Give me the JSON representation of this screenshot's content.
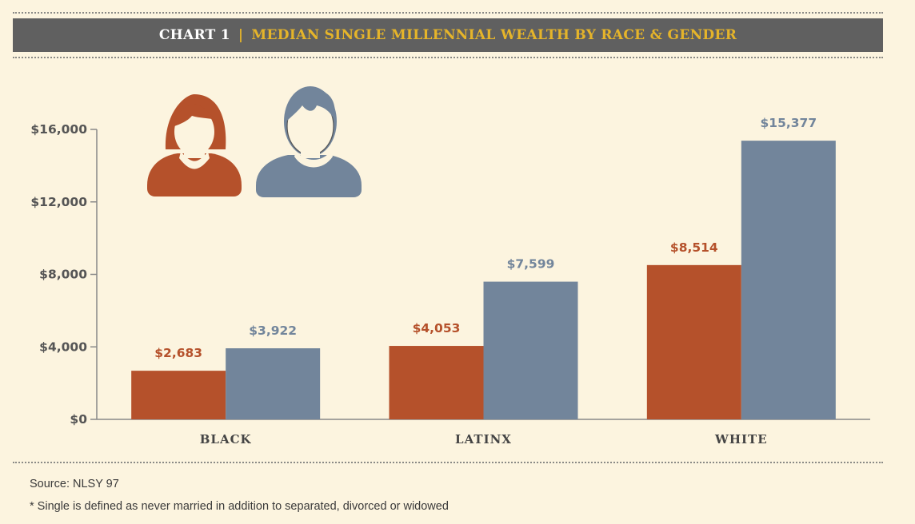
{
  "header": {
    "chart_number": "CHART 1",
    "separator": "|",
    "title": "MEDIAN SINGLE MILLENNIAL WEALTH BY RACE & GENDER"
  },
  "legend_icons": [
    {
      "name": "female-icon",
      "series": "Female",
      "color": "#b5512b"
    },
    {
      "name": "male-icon",
      "series": "Male",
      "color": "#72859b"
    }
  ],
  "chart_data": {
    "type": "bar",
    "title": "MEDIAN SINGLE MILLENNIAL WEALTH BY RACE & GENDER",
    "xlabel": "",
    "ylabel": "",
    "categories": [
      "BLACK",
      "LATINX",
      "WHITE"
    ],
    "series": [
      {
        "color": "#b5512b",
        "values": [
          2683,
          4053,
          8514
        ],
        "labels": [
          "$2,683",
          "$4,053",
          "$8,514"
        ]
      },
      {
        "color": "#72859b",
        "values": [
          3922,
          7599,
          15377
        ],
        "labels": [
          "$3,922",
          "$7,599",
          "$15,377"
        ]
      }
    ],
    "ylim": [
      0,
      16000
    ],
    "yticks": [
      0,
      4000,
      8000,
      12000,
      16000
    ],
    "ytick_labels": [
      "$0",
      "$4,000",
      "$8,000",
      "$12,000",
      "$16,000"
    ],
    "grid": false,
    "legend": "top-left icons"
  },
  "footer": {
    "source": "Source: NLSY 97",
    "note": "* Single is defined as never married in addition to separated, divorced or widowed"
  }
}
